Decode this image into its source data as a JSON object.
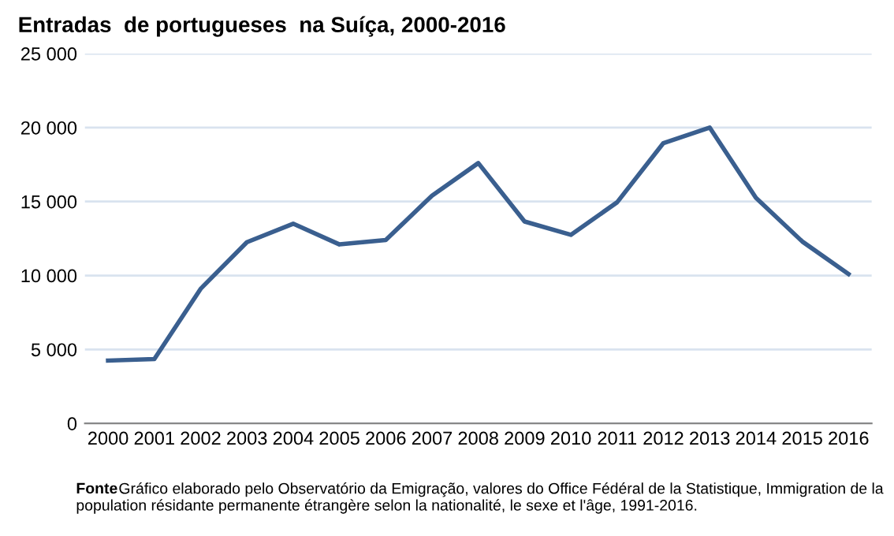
{
  "chart_data": {
    "type": "line",
    "title": "Entradas  de portugueses  na Suíça, 2000-2016",
    "categories": [
      "2000",
      "2001",
      "2002",
      "2003",
      "2004",
      "2005",
      "2006",
      "2007",
      "2008",
      "2009",
      "2010",
      "2011",
      "2012",
      "2013",
      "2014",
      "2015",
      "2016"
    ],
    "series": [
      {
        "color": "#3a5f8f",
        "values": [
          4250,
          4350,
          9100,
          12250,
          13500,
          12100,
          12400,
          15400,
          17600,
          13650,
          12750,
          14950,
          18950,
          20000,
          15250,
          12300,
          10100
        ]
      }
    ],
    "ylim": [
      0,
      25000
    ],
    "yticks": [
      0,
      {
        "value": 5000,
        "label": "5 000"
      },
      {
        "value": 10000,
        "label": "10 000"
      },
      {
        "value": 15000,
        "label": "15 000"
      },
      {
        "value": 20000,
        "label": "20 000"
      },
      {
        "value": 25000,
        "label": "25 000"
      }
    ],
    "grid": "y",
    "marker": "none",
    "line_style": "solid",
    "legend": false,
    "annotations": [
      "Fonte",
      "Gráfico elaborado pelo Observatório da Emigração, valores do Office Fédéral de la Statistique, Immigration de la population résidante permanente étrangère selon la nationalité, le sexe et l'âge, 1991-2016."
    ]
  }
}
